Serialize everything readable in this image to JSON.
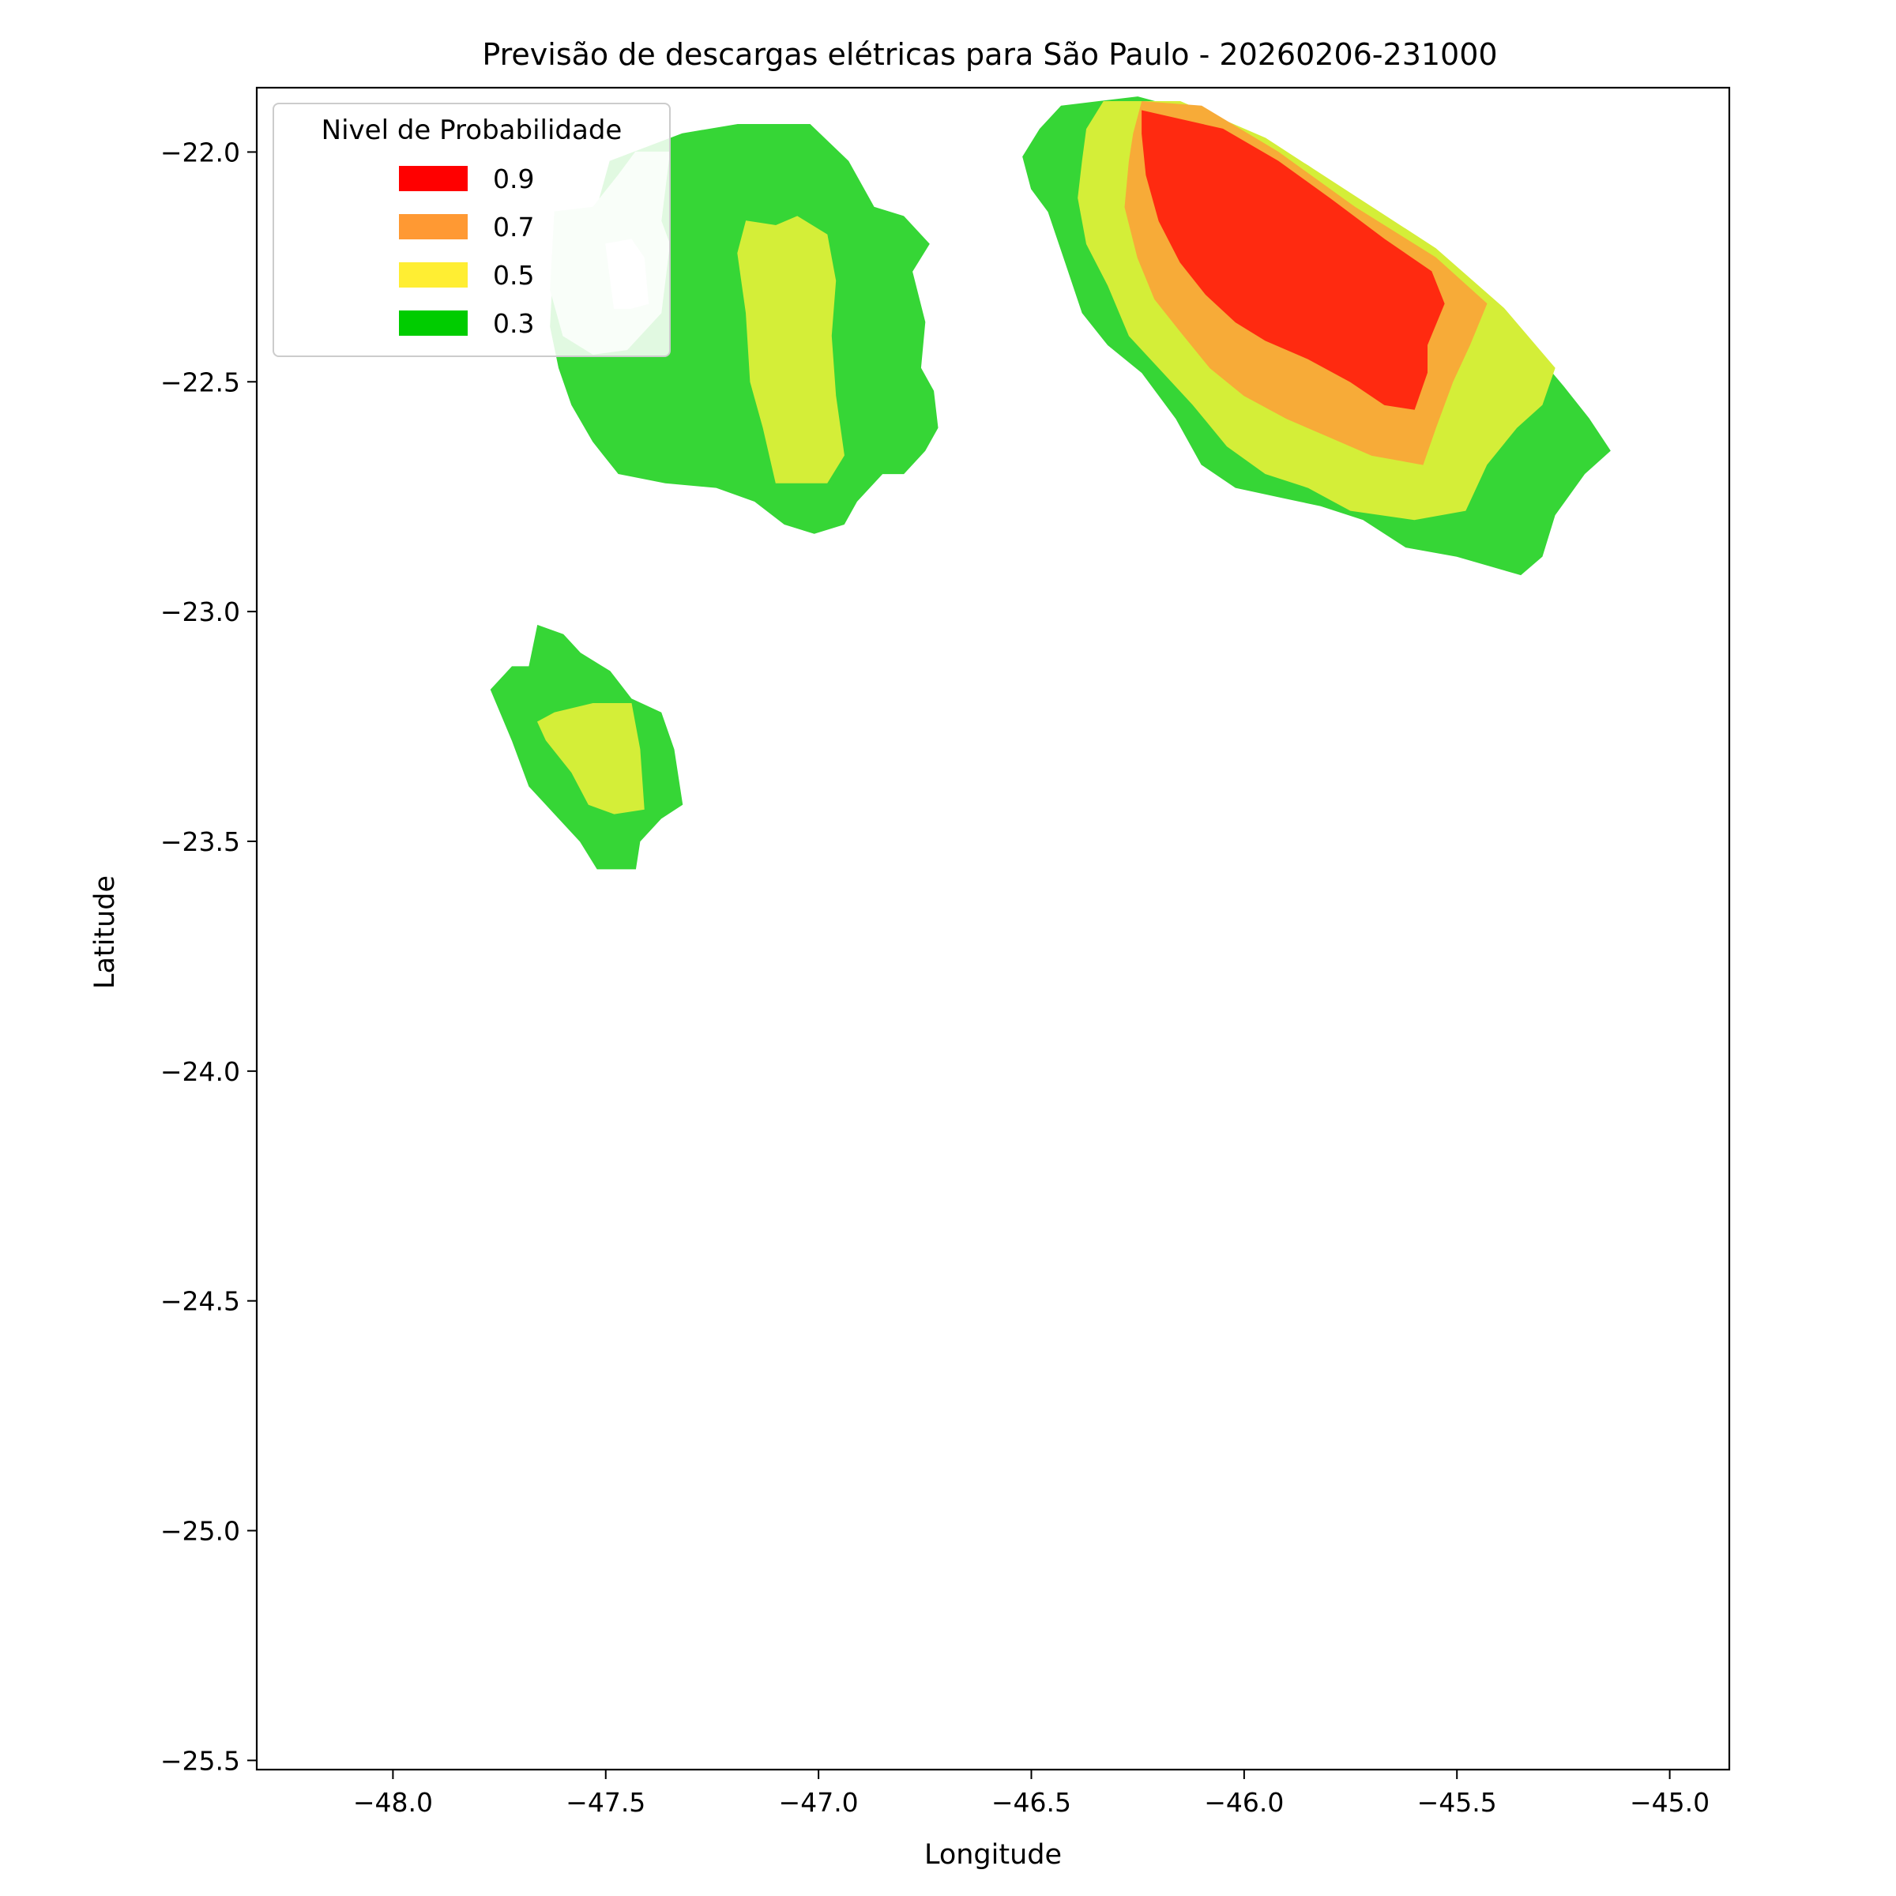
{
  "chart_data": {
    "type": "contour",
    "title": "Previsão de descargas elétricas para São Paulo - 20260206-231000",
    "xlabel": "Longitude",
    "ylabel": "Latitude",
    "xlim": [
      -48.32,
      -44.86
    ],
    "ylim": [
      -25.52,
      -21.86
    ],
    "x_ticks": [
      -48.0,
      -47.5,
      -47.0,
      -46.5,
      -46.0,
      -45.5,
      -45.0
    ],
    "x_tick_labels": [
      "−48.0",
      "−47.5",
      "−47.0",
      "−46.5",
      "−46.0",
      "−45.5",
      "−45.0"
    ],
    "y_ticks": [
      -22.0,
      -22.5,
      -23.0,
      -23.5,
      -24.0,
      -24.5,
      -25.0,
      -25.5
    ],
    "y_tick_labels": [
      "−22.0",
      "−22.5",
      "−23.0",
      "−23.5",
      "−24.0",
      "−24.5",
      "−25.0",
      "−25.5"
    ],
    "grid": false,
    "legend": {
      "title": "Nivel de Probabilidade",
      "placement": "upper left",
      "entries": [
        {
          "label": "0.9",
          "color": "#ff0000"
        },
        {
          "label": "0.7",
          "color": "#ff9933"
        },
        {
          "label": "0.5",
          "color": "#ffee33"
        },
        {
          "label": "0.3",
          "color": "#00cc00"
        }
      ]
    },
    "regions": [
      {
        "name": "0.3 northwest cell",
        "level": "0.3",
        "color": "#36d636",
        "points": [
          [
            -47.49,
            -22.02
          ],
          [
            -47.32,
            -21.96
          ],
          [
            -47.19,
            -21.94
          ],
          [
            -47.02,
            -21.94
          ],
          [
            -46.93,
            -22.02
          ],
          [
            -46.87,
            -22.12
          ],
          [
            -46.8,
            -22.14
          ],
          [
            -46.74,
            -22.2
          ],
          [
            -46.78,
            -22.26
          ],
          [
            -46.75,
            -22.37
          ],
          [
            -46.76,
            -22.47
          ],
          [
            -46.73,
            -22.52
          ],
          [
            -46.72,
            -22.6
          ],
          [
            -46.75,
            -22.65
          ],
          [
            -46.8,
            -22.7
          ],
          [
            -46.85,
            -22.7
          ],
          [
            -46.91,
            -22.76
          ],
          [
            -46.94,
            -22.81
          ],
          [
            -47.01,
            -22.83
          ],
          [
            -47.08,
            -22.81
          ],
          [
            -47.15,
            -22.76
          ],
          [
            -47.24,
            -22.73
          ],
          [
            -47.36,
            -22.72
          ],
          [
            -47.47,
            -22.7
          ],
          [
            -47.53,
            -22.63
          ],
          [
            -47.58,
            -22.55
          ],
          [
            -47.61,
            -22.47
          ],
          [
            -47.63,
            -22.38
          ],
          [
            -47.62,
            -22.2
          ],
          [
            -47.59,
            -22.13
          ],
          [
            -47.52,
            -22.12
          ]
        ]
      },
      {
        "name": "0.3 northwest cell light patch",
        "level": "0.3",
        "color": "#d8f4d8",
        "points": [
          [
            -47.43,
            -22.0
          ],
          [
            -47.35,
            -22.0
          ],
          [
            -47.37,
            -22.15
          ],
          [
            -47.35,
            -22.2
          ],
          [
            -47.37,
            -22.35
          ],
          [
            -47.45,
            -22.43
          ],
          [
            -47.53,
            -22.44
          ],
          [
            -47.6,
            -22.4
          ],
          [
            -47.63,
            -22.3
          ],
          [
            -47.62,
            -22.13
          ],
          [
            -47.53,
            -22.12
          ],
          [
            -47.47,
            -22.05
          ]
        ]
      },
      {
        "name": "0.3 northwest cell white hole",
        "level": "0.3",
        "color": "#ffffff",
        "points": [
          [
            -47.5,
            -22.2
          ],
          [
            -47.44,
            -22.19
          ],
          [
            -47.41,
            -22.23
          ],
          [
            -47.4,
            -22.33
          ],
          [
            -47.44,
            -22.34
          ],
          [
            -47.48,
            -22.34
          ],
          [
            -47.49,
            -22.27
          ]
        ]
      },
      {
        "name": "0.5 northwest band",
        "level": "0.5",
        "color": "#d4ee38",
        "points": [
          [
            -47.17,
            -22.15
          ],
          [
            -47.1,
            -22.16
          ],
          [
            -47.05,
            -22.14
          ],
          [
            -46.98,
            -22.18
          ],
          [
            -46.96,
            -22.28
          ],
          [
            -46.97,
            -22.4
          ],
          [
            -46.96,
            -22.53
          ],
          [
            -46.94,
            -22.66
          ],
          [
            -46.98,
            -22.72
          ],
          [
            -47.05,
            -22.72
          ],
          [
            -47.1,
            -22.72
          ],
          [
            -47.13,
            -22.6
          ],
          [
            -47.16,
            -22.5
          ],
          [
            -47.17,
            -22.35
          ],
          [
            -47.19,
            -22.22
          ]
        ]
      },
      {
        "name": "0.3 southwest cell",
        "level": "0.3",
        "color": "#36d636",
        "points": [
          [
            -47.66,
            -23.03
          ],
          [
            -47.6,
            -23.05
          ],
          [
            -47.56,
            -23.09
          ],
          [
            -47.49,
            -23.13
          ],
          [
            -47.44,
            -23.19
          ],
          [
            -47.37,
            -23.22
          ],
          [
            -47.34,
            -23.3
          ],
          [
            -47.32,
            -23.42
          ],
          [
            -47.37,
            -23.45
          ],
          [
            -47.42,
            -23.5
          ],
          [
            -47.43,
            -23.56
          ],
          [
            -47.52,
            -23.56
          ],
          [
            -47.56,
            -23.5
          ],
          [
            -47.62,
            -23.44
          ],
          [
            -47.68,
            -23.38
          ],
          [
            -47.72,
            -23.28
          ],
          [
            -47.77,
            -23.17
          ],
          [
            -47.72,
            -23.12
          ],
          [
            -47.68,
            -23.12
          ]
        ]
      },
      {
        "name": "0.5 southwest band",
        "level": "0.5",
        "color": "#d4ee38",
        "points": [
          [
            -47.62,
            -23.22
          ],
          [
            -47.53,
            -23.2
          ],
          [
            -47.44,
            -23.2
          ],
          [
            -47.42,
            -23.3
          ],
          [
            -47.41,
            -23.43
          ],
          [
            -47.48,
            -23.44
          ],
          [
            -47.54,
            -23.42
          ],
          [
            -47.58,
            -23.35
          ],
          [
            -47.64,
            -23.28
          ],
          [
            -47.66,
            -23.24
          ]
        ]
      },
      {
        "name": "0.3 northeast cell",
        "level": "0.3",
        "color": "#36d636",
        "points": [
          [
            -46.43,
            -21.9
          ],
          [
            -46.25,
            -21.88
          ],
          [
            -46.05,
            -21.93
          ],
          [
            -45.85,
            -22.03
          ],
          [
            -45.65,
            -22.16
          ],
          [
            -45.5,
            -22.27
          ],
          [
            -45.35,
            -22.4
          ],
          [
            -45.25,
            -22.51
          ],
          [
            -45.19,
            -22.58
          ],
          [
            -45.14,
            -22.65
          ],
          [
            -45.2,
            -22.7
          ],
          [
            -45.27,
            -22.79
          ],
          [
            -45.3,
            -22.88
          ],
          [
            -45.35,
            -22.92
          ],
          [
            -45.5,
            -22.88
          ],
          [
            -45.62,
            -22.86
          ],
          [
            -45.72,
            -22.8
          ],
          [
            -45.82,
            -22.77
          ],
          [
            -45.92,
            -22.75
          ],
          [
            -46.02,
            -22.73
          ],
          [
            -46.1,
            -22.68
          ],
          [
            -46.16,
            -22.58
          ],
          [
            -46.24,
            -22.48
          ],
          [
            -46.32,
            -22.42
          ],
          [
            -46.38,
            -22.35
          ],
          [
            -46.42,
            -22.24
          ],
          [
            -46.46,
            -22.13
          ],
          [
            -46.5,
            -22.08
          ],
          [
            -46.52,
            -22.01
          ],
          [
            -46.48,
            -21.95
          ]
        ]
      },
      {
        "name": "0.5 northeast band",
        "level": "0.5",
        "color": "#d4ee38",
        "points": [
          [
            -46.33,
            -21.89
          ],
          [
            -46.15,
            -21.89
          ],
          [
            -45.95,
            -21.97
          ],
          [
            -45.75,
            -22.09
          ],
          [
            -45.55,
            -22.21
          ],
          [
            -45.39,
            -22.34
          ],
          [
            -45.27,
            -22.47
          ],
          [
            -45.3,
            -22.55
          ],
          [
            -45.36,
            -22.6
          ],
          [
            -45.43,
            -22.68
          ],
          [
            -45.48,
            -22.78
          ],
          [
            -45.6,
            -22.8
          ],
          [
            -45.75,
            -22.78
          ],
          [
            -45.85,
            -22.73
          ],
          [
            -45.95,
            -22.7
          ],
          [
            -46.04,
            -22.64
          ],
          [
            -46.12,
            -22.55
          ],
          [
            -46.2,
            -22.47
          ],
          [
            -46.27,
            -22.4
          ],
          [
            -46.32,
            -22.29
          ],
          [
            -46.37,
            -22.2
          ],
          [
            -46.39,
            -22.1
          ],
          [
            -46.38,
            -22.02
          ],
          [
            -46.37,
            -21.95
          ]
        ]
      },
      {
        "name": "0.7 northeast band",
        "level": "0.7",
        "color": "#f7ab38",
        "points": [
          [
            -46.24,
            -21.89
          ],
          [
            -46.1,
            -21.9
          ],
          [
            -45.92,
            -22.0
          ],
          [
            -45.74,
            -22.12
          ],
          [
            -45.55,
            -22.23
          ],
          [
            -45.43,
            -22.33
          ],
          [
            -45.47,
            -22.42
          ],
          [
            -45.51,
            -22.5
          ],
          [
            -45.55,
            -22.6
          ],
          [
            -45.58,
            -22.68
          ],
          [
            -45.7,
            -22.66
          ],
          [
            -45.8,
            -22.62
          ],
          [
            -45.9,
            -22.58
          ],
          [
            -46.0,
            -22.53
          ],
          [
            -46.08,
            -22.47
          ],
          [
            -46.15,
            -22.39
          ],
          [
            -46.21,
            -22.32
          ],
          [
            -46.25,
            -22.23
          ],
          [
            -46.28,
            -22.12
          ],
          [
            -46.27,
            -22.02
          ],
          [
            -46.26,
            -21.96
          ]
        ]
      },
      {
        "name": "0.9 northeast core",
        "level": "0.9",
        "color": "#ff2a10",
        "points": [
          [
            -46.24,
            -21.91
          ],
          [
            -46.05,
            -21.95
          ],
          [
            -45.92,
            -22.02
          ],
          [
            -45.8,
            -22.1
          ],
          [
            -45.67,
            -22.19
          ],
          [
            -45.56,
            -22.26
          ],
          [
            -45.53,
            -22.33
          ],
          [
            -45.57,
            -22.42
          ],
          [
            -45.57,
            -22.48
          ],
          [
            -45.6,
            -22.56
          ],
          [
            -45.67,
            -22.55
          ],
          [
            -45.75,
            -22.5
          ],
          [
            -45.85,
            -22.45
          ],
          [
            -45.95,
            -22.41
          ],
          [
            -46.02,
            -22.37
          ],
          [
            -46.09,
            -22.31
          ],
          [
            -46.15,
            -22.24
          ],
          [
            -46.2,
            -22.15
          ],
          [
            -46.23,
            -22.05
          ],
          [
            -46.24,
            -21.96
          ]
        ]
      }
    ]
  }
}
